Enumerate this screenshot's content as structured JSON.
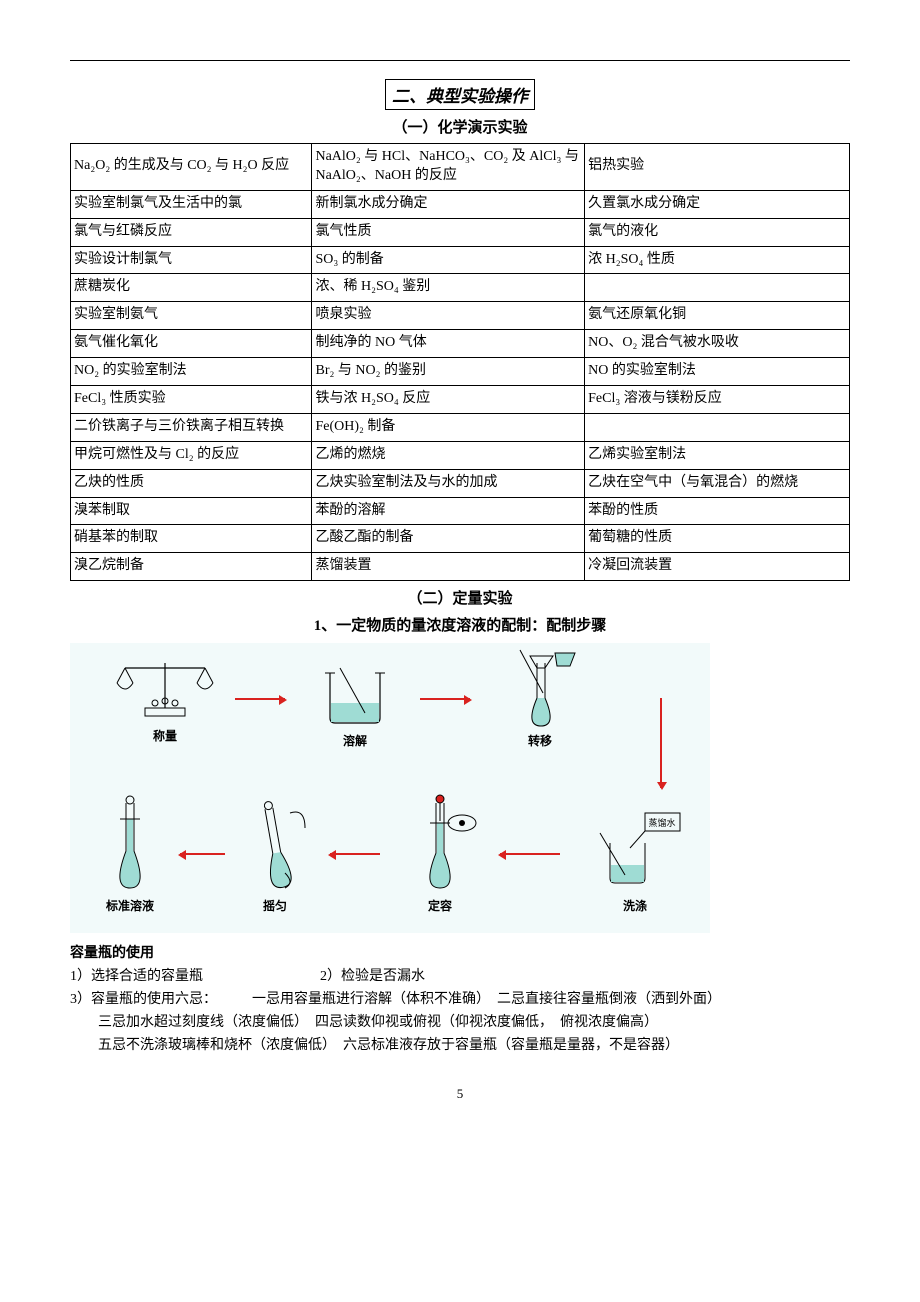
{
  "section_title": "二、典型实验操作",
  "subsection_a": "（一）化学演示实验",
  "table_rows": [
    [
      "Na₂O₂ 的生成及与 CO₂ 与 H₂O 反应",
      "NaAlO₂ 与 HCl、NaHCO₃、CO₂ 及 AlCl₃ 与 NaAlO₂、NaOH 的反应",
      "铝热实验"
    ],
    [
      "实验室制氯气及生活中的氯",
      "新制氯水成分确定",
      "久置氯水成分确定"
    ],
    [
      "氯气与红磷反应",
      "氯气性质",
      "氯气的液化"
    ],
    [
      "实验设计制氯气",
      "SO₃ 的制备",
      "浓 H₂SO₄ 性质"
    ],
    [
      "蔗糖炭化",
      "浓、稀 H₂SO₄ 鉴别",
      ""
    ],
    [
      "实验室制氨气",
      "喷泉实验",
      "氨气还原氧化铜"
    ],
    [
      "氨气催化氧化",
      "制纯净的 NO 气体",
      "NO、O₂ 混合气被水吸收"
    ],
    [
      "NO₂ 的实验室制法",
      "Br₂ 与 NO₂ 的鉴别",
      "NO 的实验室制法"
    ],
    [
      "FeCl₃ 性质实验",
      "铁与浓 H₂SO₄ 反应",
      "FeCl₃ 溶液与镁粉反应"
    ],
    [
      "二价铁离子与三价铁离子相互转换",
      "Fe(OH)₂ 制备",
      ""
    ],
    [
      "甲烷可燃性及与 Cl₂ 的反应",
      "乙烯的燃烧",
      "乙烯实验室制法"
    ],
    [
      "乙炔的性质",
      "乙炔实验室制法及与水的加成",
      "乙炔在空气中（与氧混合）的燃烧"
    ],
    [
      "溴苯制取",
      "苯酚的溶解",
      "苯酚的性质"
    ],
    [
      "硝基苯的制取",
      "乙酸乙酯的制备",
      "葡萄糖的性质"
    ],
    [
      "溴乙烷制备",
      "蒸馏装置",
      "冷凝回流装置"
    ]
  ],
  "subsection_b": "（二）定量实验",
  "subsection_b_line": "1、一定物质的量浓度溶液的配制：配制步骤",
  "steps": {
    "weigh": "称量",
    "dissolve": "溶解",
    "transfer": "转移",
    "rinse": "洗涤",
    "water": "蒸馏水",
    "volume": "定容",
    "shake": "摇匀",
    "standard": "标准溶液"
  },
  "usage": {
    "title": "容量瓶的使用",
    "line1a": "1）选择合适的容量瓶",
    "line1b": "2）检验是否漏水",
    "line2a": "3）容量瓶的使用六忌：",
    "line2b": "一忌用容量瓶进行溶解（体积不准确）　二忌直接往容量瓶倒液（洒到外面）",
    "line3": "三忌加水超过刻度线（浓度偏低）　四忌读数仰视或俯视（仰视浓度偏低，　俯视浓度偏高）",
    "line4": "五忌不洗涤玻璃棒和烧杯（浓度偏低）　六忌标准液存放于容量瓶（容量瓶是量器，不是容器）"
  },
  "page_number": "5",
  "colors": {
    "liquid": "#9fdcd4",
    "arrow": "#d9221f",
    "outline": "#000000"
  }
}
